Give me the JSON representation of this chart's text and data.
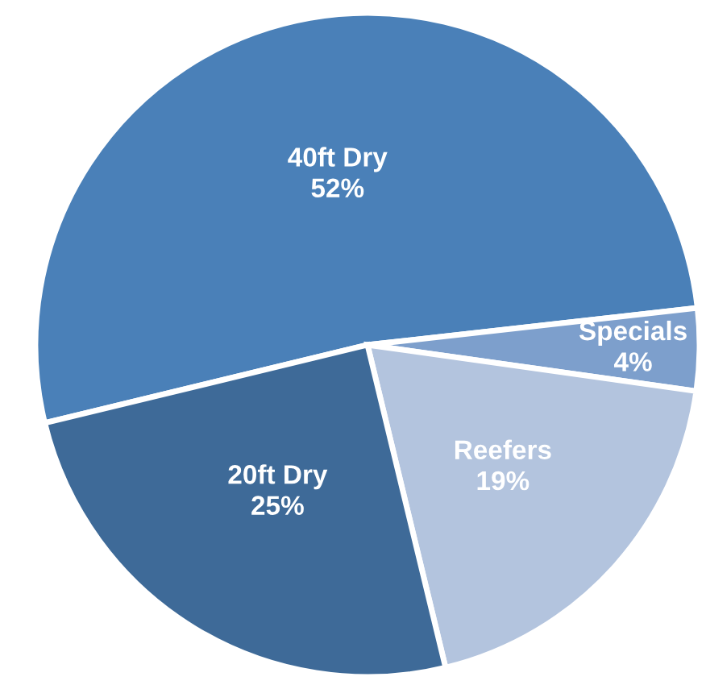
{
  "chart_data": {
    "type": "pie",
    "categories": [
      "40ft Dry",
      "Specials",
      "Reefers",
      "20ft Dry"
    ],
    "values": [
      52,
      4,
      19,
      25
    ],
    "colors": [
      "#4a80b8",
      "#7d9fcc",
      "#b3c4de",
      "#3e6a98"
    ],
    "value_labels": [
      "52%",
      "4%",
      "19%",
      "25%"
    ],
    "legend": false
  }
}
